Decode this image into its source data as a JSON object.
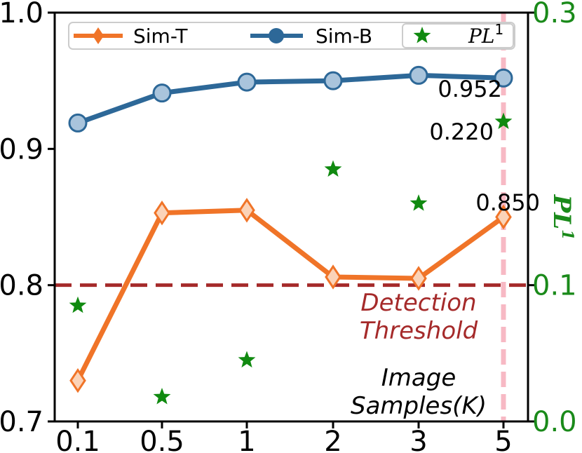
{
  "chart_data": {
    "type": "line",
    "categories": [
      "0.1",
      "0.5",
      "1",
      "2",
      "3",
      "5"
    ],
    "series": [
      {
        "name": "Sim-T",
        "axis": "left",
        "color": "#f07428",
        "marker": "diamond",
        "values": [
          0.73,
          0.853,
          0.855,
          0.806,
          0.805,
          0.85
        ]
      },
      {
        "name": "Sim-B",
        "axis": "left",
        "color": "#2d6898",
        "marker": "circle",
        "values": [
          0.919,
          0.941,
          0.949,
          0.95,
          0.954,
          0.952
        ]
      },
      {
        "name": "PL1",
        "axis": "right",
        "color": "#108a10",
        "marker": "star",
        "values": [
          0.085,
          0.018,
          0.045,
          0.185,
          0.16,
          0.22
        ]
      }
    ],
    "left_axis": {
      "ylim": [
        0.7,
        1.0
      ],
      "ticks": [
        "0.7",
        "0.8",
        "0.9",
        "1.0"
      ]
    },
    "right_axis": {
      "ylim": [
        0.0,
        0.3
      ],
      "ticks": [
        "0.0",
        "0.1",
        "0.3"
      ],
      "label": "PL",
      "label_sup": "1",
      "color": "#1a8a1a"
    },
    "legend": {
      "placement": "top",
      "entries": [
        {
          "label": "Sim-T"
        },
        {
          "label": "Sim-B"
        },
        {
          "label": "PL",
          "sup": "1"
        }
      ]
    },
    "threshold": {
      "value": 0.8,
      "label_line1": "Detection",
      "label_line2": "Threshold",
      "color": "#a52a2a"
    },
    "highlight": {
      "category": "5",
      "color": "#f7b9c4"
    },
    "annotations": [
      {
        "text": "0.952"
      },
      {
        "text": "0.220"
      },
      {
        "text": "0.850"
      }
    ],
    "xlabel_line1": "Image",
    "xlabel_line2": "Samples(K)"
  }
}
